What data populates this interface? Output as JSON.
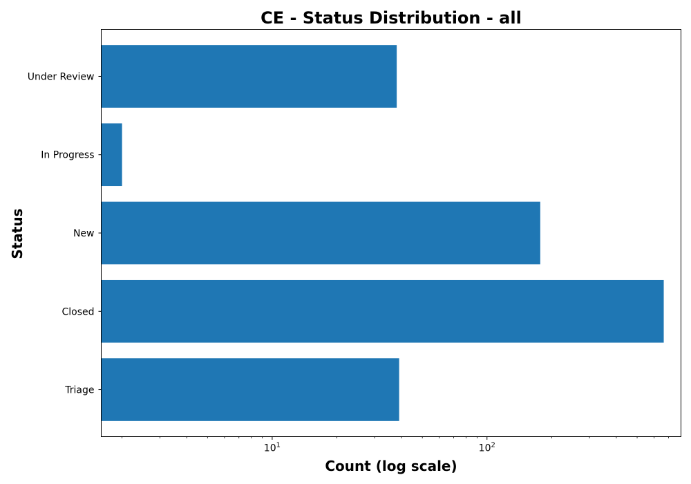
{
  "chart_data": {
    "type": "bar",
    "orientation": "horizontal",
    "title": "CE - Status Distribution - all",
    "xlabel": "Count (log scale)",
    "ylabel": "Status",
    "x_scale": "log",
    "xlim": [
      1.6,
      800
    ],
    "x_major_ticks": [
      {
        "value": 10,
        "base": "10",
        "exp": "1"
      },
      {
        "value": 100,
        "base": "10",
        "exp": "2"
      }
    ],
    "x_minor_ticks": [
      2,
      3,
      4,
      5,
      6,
      7,
      8,
      9,
      20,
      30,
      40,
      50,
      60,
      70,
      80,
      90,
      200,
      300,
      400,
      500,
      600,
      700
    ],
    "categories": [
      "Under Review",
      "In Progress",
      "New",
      "Closed",
      "Triage"
    ],
    "values": [
      38,
      2,
      177,
      665,
      39
    ],
    "bar_color": "#1f77b4",
    "grid": false,
    "legend": "none"
  }
}
